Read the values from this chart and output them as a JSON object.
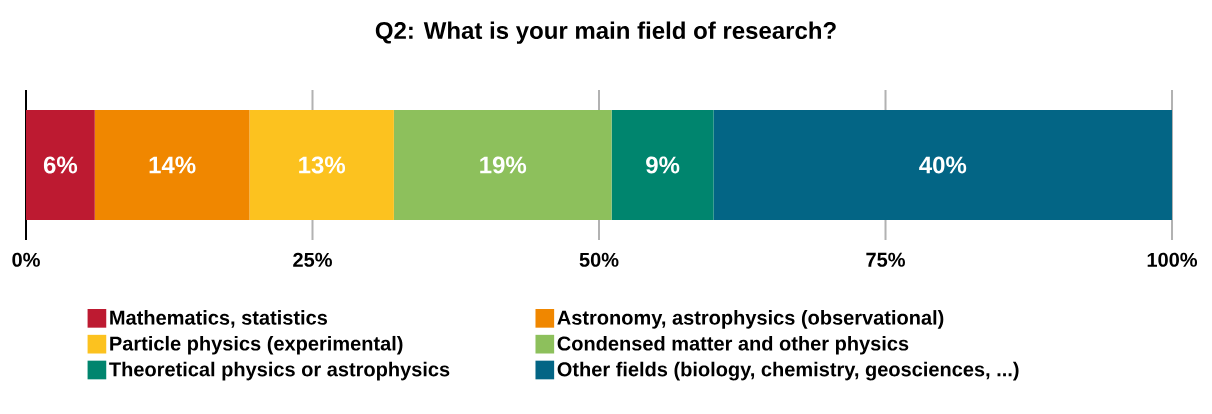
{
  "chart_data": {
    "type": "bar",
    "orientation": "horizontal",
    "stacked": true,
    "title": "Q2: What is your main field of research?",
    "categories": [
      null
    ],
    "series": [
      {
        "name": "Mathematics, statistics",
        "color": "#bd1a31",
        "values": [
          6.0
        ],
        "value_labels": [
          "6%"
        ]
      },
      {
        "name": "Astronomy, astrophysics (observational)",
        "color": "#f08700",
        "values": [
          13.5
        ],
        "value_labels": [
          "14%"
        ]
      },
      {
        "name": "Particle physics (experimental)",
        "color": "#fcc21f",
        "values": [
          12.6
        ],
        "value_labels": [
          "13%"
        ]
      },
      {
        "name": "Condensed matter and other physics",
        "color": "#8dc05c",
        "values": [
          19.0
        ],
        "value_labels": [
          "19%"
        ]
      },
      {
        "name": "Theoretical physics or astrophysics",
        "color": "#00856e",
        "values": [
          8.9
        ],
        "value_labels": [
          "9%"
        ]
      },
      {
        "name": "Other fields (biology, chemistry, geosciences, ...)",
        "color": "#036585",
        "values": [
          40.0
        ],
        "value_labels": [
          "40%"
        ]
      }
    ],
    "xlim": [
      0,
      100
    ],
    "xticks": [
      {
        "value": 0,
        "label": "0%"
      },
      {
        "value": 25,
        "label": "25%"
      },
      {
        "value": 50,
        "label": "50%"
      },
      {
        "value": 75,
        "label": "75%"
      },
      {
        "value": 100,
        "label": "100%"
      }
    ],
    "grid": "x",
    "legend": "bottom"
  }
}
